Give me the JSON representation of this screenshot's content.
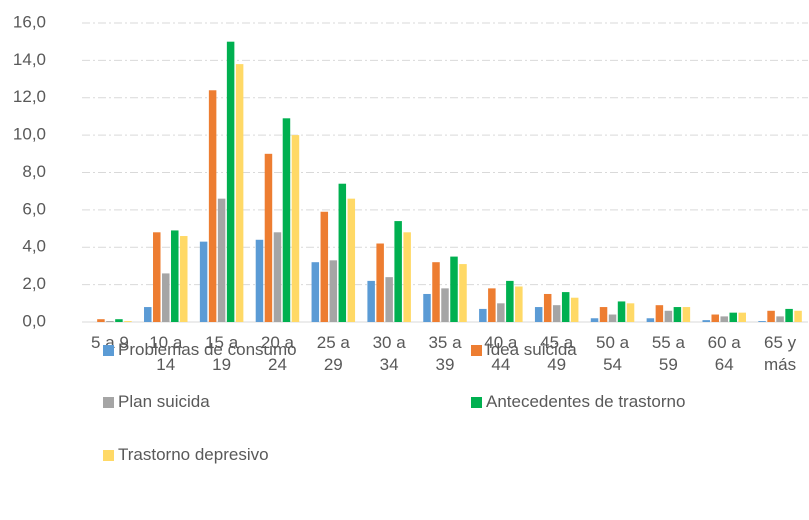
{
  "chart_data": {
    "type": "bar",
    "categories": [
      "5 a 9",
      "10 a 14",
      "15 a 19",
      "20 a 24",
      "25 a 29",
      "30 a 34",
      "35 a 39",
      "40 a 44",
      "45 a 49",
      "50 a 54",
      "55 a 59",
      "60 a 64",
      "65 y más"
    ],
    "series": [
      {
        "name": "Problemas de consumo",
        "color": "#5b9bd5",
        "values": [
          0,
          0.8,
          4.3,
          4.4,
          3.2,
          2.2,
          1.5,
          0.7,
          0.8,
          0.2,
          0.2,
          0.1,
          0.05
        ]
      },
      {
        "name": "Idea suicida",
        "color": "#ed7d31",
        "values": [
          0.15,
          4.8,
          12.4,
          9.0,
          5.9,
          4.2,
          3.2,
          1.8,
          1.5,
          0.8,
          0.9,
          0.4,
          0.6
        ]
      },
      {
        "name": "Plan suicida",
        "color": "#a5a5a5",
        "values": [
          0.05,
          2.6,
          6.6,
          4.8,
          3.3,
          2.4,
          1.8,
          1.0,
          0.9,
          0.4,
          0.6,
          0.3,
          0.3
        ]
      },
      {
        "name": "Antecedentes de trastorno",
        "color": "#00b050",
        "values": [
          0.15,
          4.9,
          15.0,
          10.9,
          7.4,
          5.4,
          3.5,
          2.2,
          1.6,
          1.1,
          0.8,
          0.5,
          0.7
        ]
      },
      {
        "name": "Trastorno depresivo",
        "color": "#ffd966",
        "values": [
          0.05,
          4.6,
          13.8,
          10.0,
          6.6,
          4.8,
          3.1,
          1.9,
          1.3,
          1.0,
          0.8,
          0.5,
          0.6
        ]
      }
    ],
    "ylim": [
      0,
      16
    ],
    "yticks": [
      {
        "value": 0,
        "label": "0,0"
      },
      {
        "value": 2,
        "label": "2,0"
      },
      {
        "value": 4,
        "label": "4,0"
      },
      {
        "value": 6,
        "label": "6,0"
      },
      {
        "value": 8,
        "label": "8,0"
      },
      {
        "value": 10,
        "label": "10,0"
      },
      {
        "value": 12,
        "label": "12,0"
      },
      {
        "value": 14,
        "label": "14,0"
      },
      {
        "value": 16,
        "label": "16,0"
      }
    ],
    "grid": true,
    "legend": "bottom"
  }
}
